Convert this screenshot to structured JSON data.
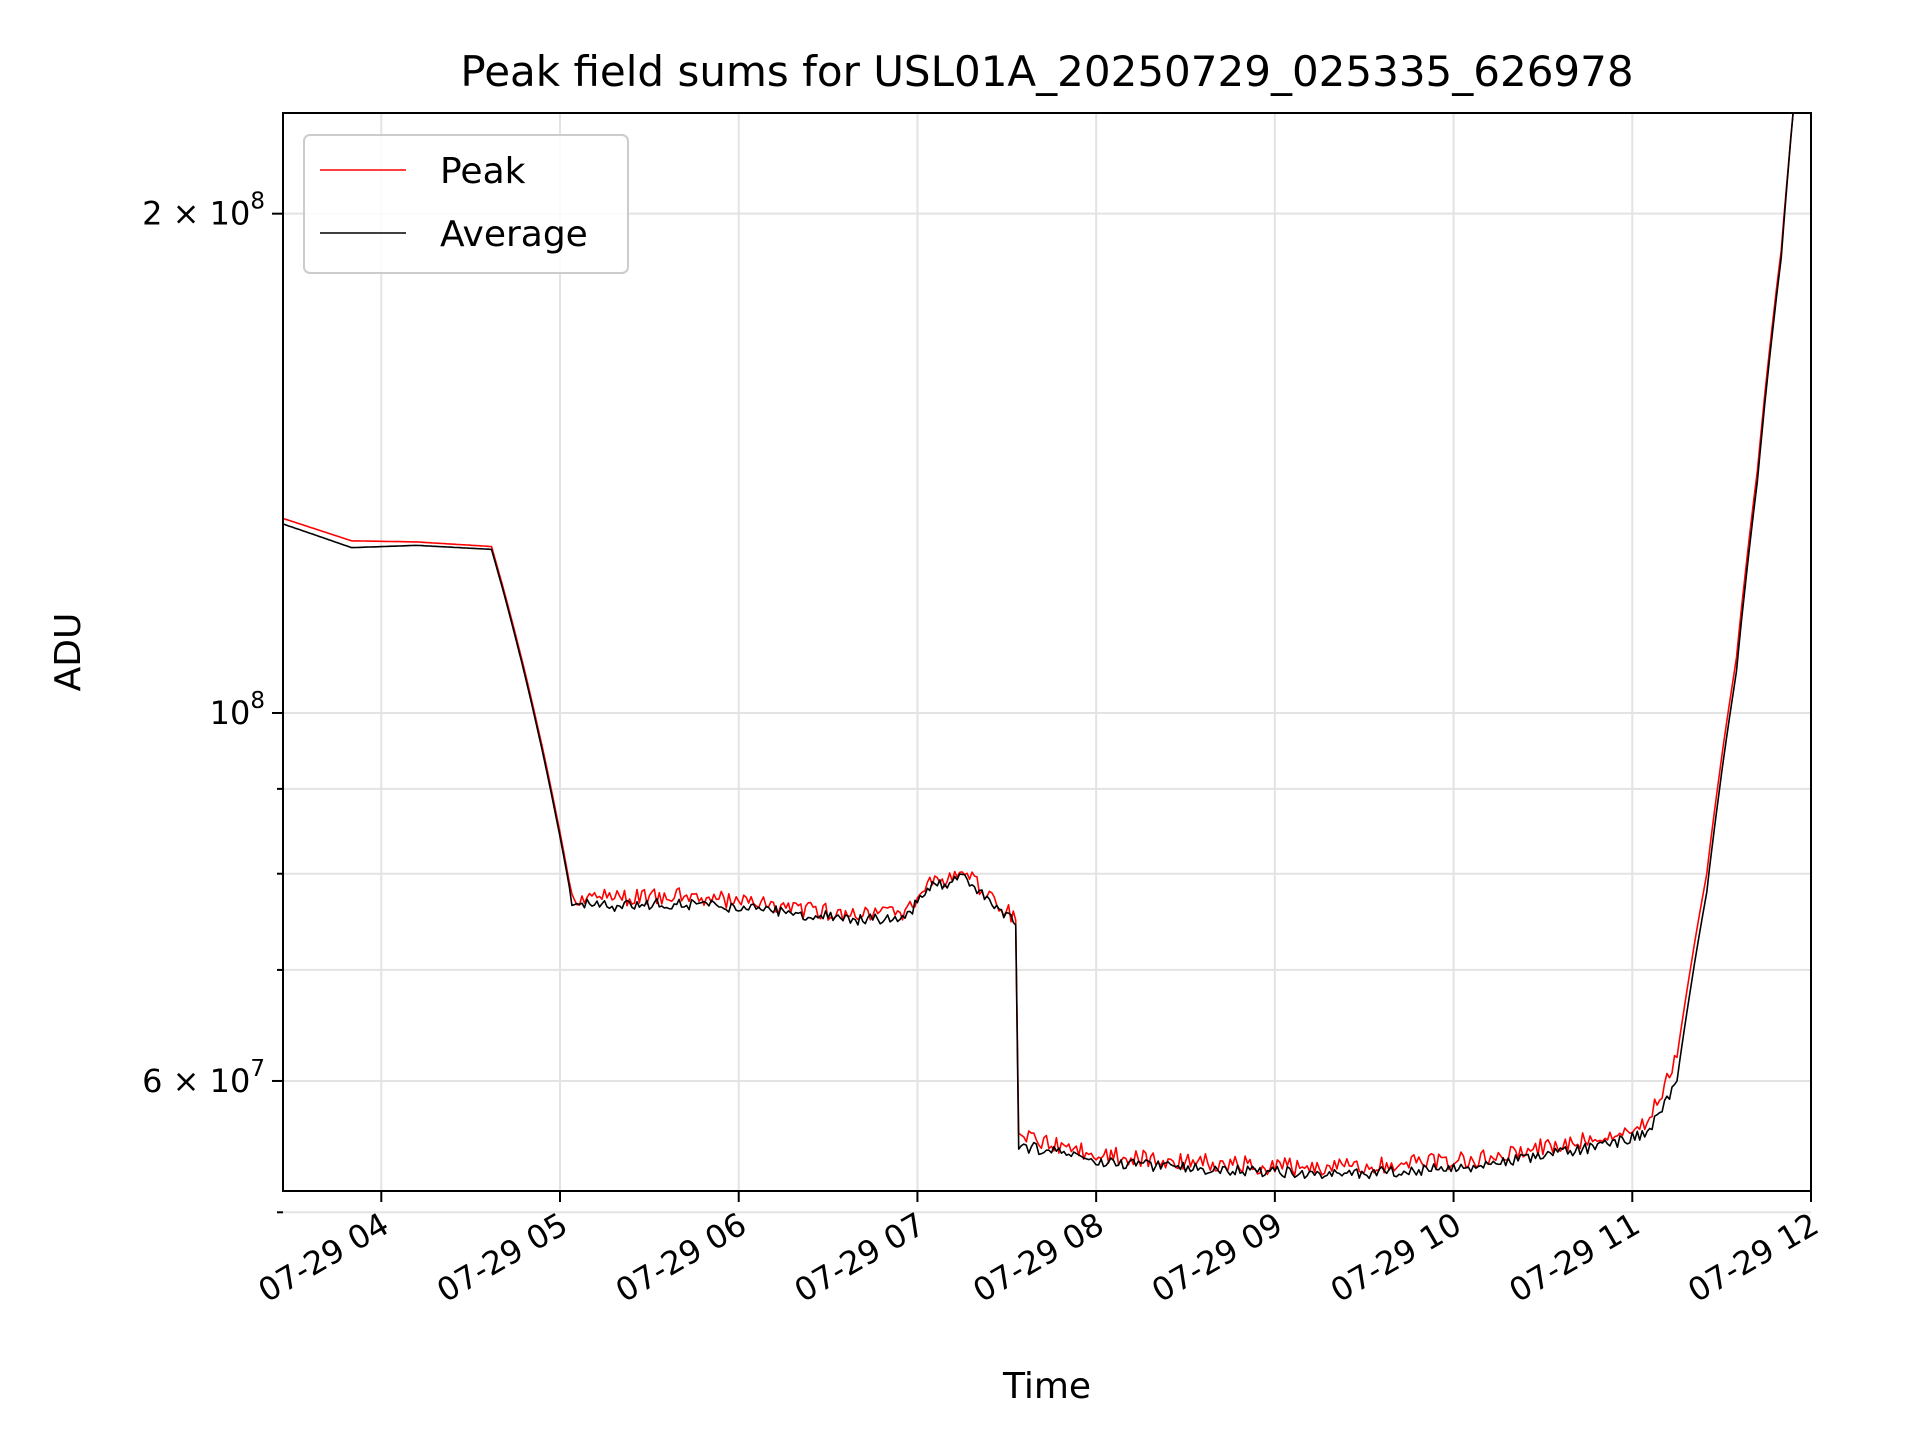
{
  "chart_data": {
    "type": "line",
    "title": "Peak field sums for USL01A_20250729_025335_626978",
    "xlabel": "Time",
    "ylabel": "ADU",
    "yscale": "log",
    "ylim": [
      51500000,
      230000000
    ],
    "xlim": [
      "07-29 03:27",
      "07-29 12:00"
    ],
    "grid": true,
    "legend_position": "upper-left",
    "x_ticks": [
      "07-29 04",
      "07-29 05",
      "07-29 06",
      "07-29 07",
      "07-29 08",
      "07-29 09",
      "07-29 10",
      "07-29 11",
      "07-29 12"
    ],
    "y_ticks": [
      {
        "value": 200000000,
        "base": "2 × 10",
        "exp": "8"
      },
      {
        "value": 100000000,
        "base": "10",
        "exp": "8"
      },
      {
        "value": 60000000,
        "base": "6 × 10",
        "exp": "7"
      }
    ],
    "y_minor_ticks": [
      50000000,
      70000000,
      80000000,
      90000000
    ],
    "series": [
      {
        "name": "Peak",
        "color": "#ff0000",
        "points": [
          [
            "07-29 03:27",
            131000000
          ],
          [
            "07-29 03:50",
            127000000
          ],
          [
            "07-29 04:12",
            126800000
          ],
          [
            "07-29 04:37",
            126000000
          ],
          [
            "07-29 05:04",
            77500000
          ],
          [
            "07-29 05:20",
            77300000
          ],
          [
            "07-29 05:40",
            77600000
          ],
          [
            "07-29 06:00",
            77000000
          ],
          [
            "07-29 06:20",
            76200000
          ],
          [
            "07-29 06:40",
            75500000
          ],
          [
            "07-29 06:55",
            75600000
          ],
          [
            "07-29 07:05",
            79000000
          ],
          [
            "07-29 07:15",
            80200000
          ],
          [
            "07-29 07:25",
            77500000
          ],
          [
            "07-29 07:33",
            75000000
          ],
          [
            "07-29 07:34",
            55500000
          ],
          [
            "07-29 07:45",
            55000000
          ],
          [
            "07-29 08:00",
            54200000
          ],
          [
            "07-29 08:15",
            53900000
          ],
          [
            "07-29 08:30",
            53700000
          ],
          [
            "07-29 08:45",
            53500000
          ],
          [
            "07-29 09:00",
            53300000
          ],
          [
            "07-29 09:15",
            53200000
          ],
          [
            "07-29 09:30",
            53300000
          ],
          [
            "07-29 09:45",
            53500000
          ],
          [
            "07-29 10:00",
            53700000
          ],
          [
            "07-29 10:15",
            54000000
          ],
          [
            "07-29 10:30",
            54800000
          ],
          [
            "07-29 10:50",
            55500000
          ],
          [
            "07-29 11:05",
            56500000
          ],
          [
            "07-29 11:15",
            62000000
          ],
          [
            "07-29 11:25",
            80000000
          ],
          [
            "07-29 11:35",
            108000000
          ],
          [
            "07-29 11:42",
            140000000
          ],
          [
            "07-29 11:50",
            190000000
          ],
          [
            "07-29 11:54",
            230000000
          ]
        ]
      },
      {
        "name": "Average",
        "color": "#000000",
        "points": [
          [
            "07-29 03:27",
            130000000
          ],
          [
            "07-29 03:50",
            125800000
          ],
          [
            "07-29 04:12",
            126200000
          ],
          [
            "07-29 04:37",
            125500000
          ],
          [
            "07-29 05:04",
            77000000
          ],
          [
            "07-29 05:20",
            76500000
          ],
          [
            "07-29 05:40",
            76800000
          ],
          [
            "07-29 06:00",
            76300000
          ],
          [
            "07-29 06:20",
            75700000
          ],
          [
            "07-29 06:40",
            75000000
          ],
          [
            "07-29 06:55",
            75100000
          ],
          [
            "07-29 07:05",
            78500000
          ],
          [
            "07-29 07:15",
            79500000
          ],
          [
            "07-29 07:25",
            76900000
          ],
          [
            "07-29 07:33",
            74500000
          ],
          [
            "07-29 07:34",
            54800000
          ],
          [
            "07-29 07:45",
            54500000
          ],
          [
            "07-29 08:00",
            53700000
          ],
          [
            "07-29 08:15",
            53400000
          ],
          [
            "07-29 08:30",
            53200000
          ],
          [
            "07-29 08:45",
            53000000
          ],
          [
            "07-29 09:00",
            52900000
          ],
          [
            "07-29 09:15",
            52800000
          ],
          [
            "07-29 09:30",
            52800000
          ],
          [
            "07-29 09:45",
            53000000
          ],
          [
            "07-29 10:00",
            53200000
          ],
          [
            "07-29 10:15",
            53500000
          ],
          [
            "07-29 10:30",
            54200000
          ],
          [
            "07-29 10:50",
            54800000
          ],
          [
            "07-29 11:05",
            55800000
          ],
          [
            "07-29 11:15",
            60000000
          ],
          [
            "07-29 11:25",
            78000000
          ],
          [
            "07-29 11:35",
            106000000
          ],
          [
            "07-29 11:42",
            138000000
          ],
          [
            "07-29 11:50",
            188000000
          ],
          [
            "07-29 11:54",
            230000000
          ]
        ]
      }
    ]
  }
}
